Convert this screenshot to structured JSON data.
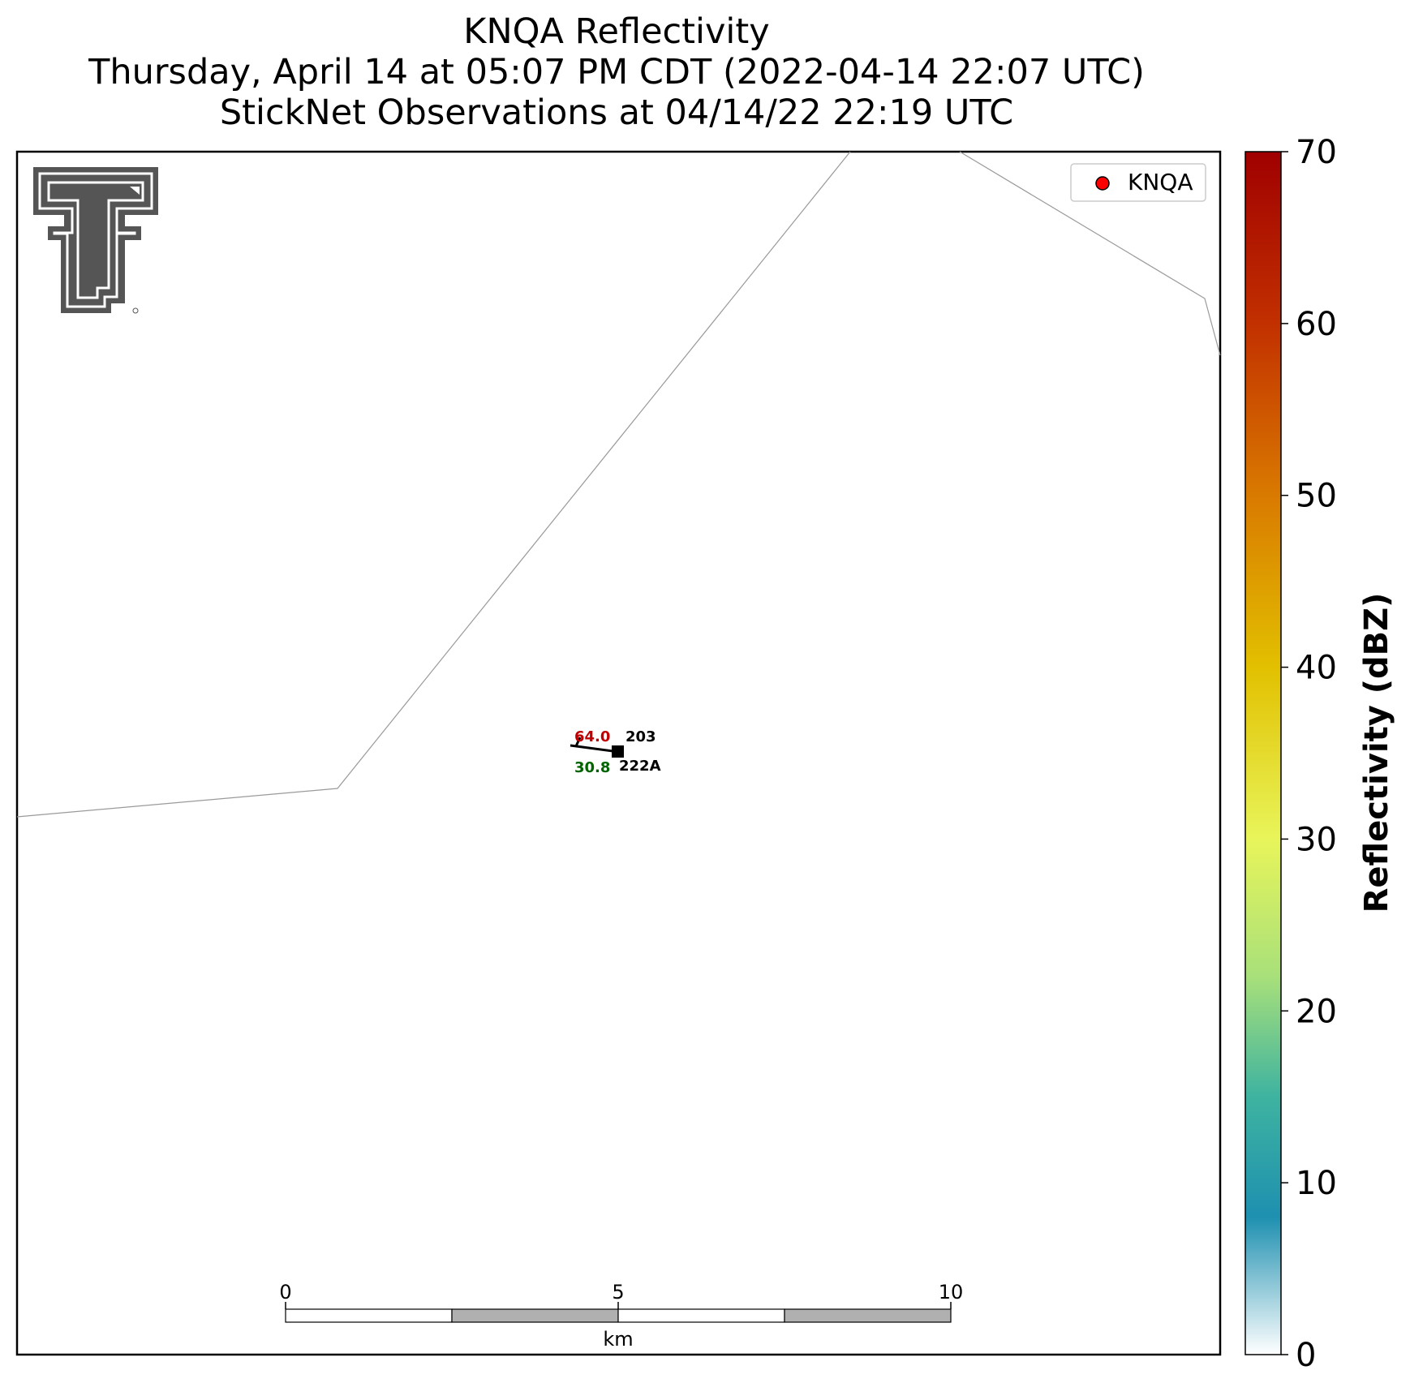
{
  "title": {
    "line1": "KNQA Reflectivity",
    "line2": "Thursday, April 14 at 05:07 PM CDT (2022-04-14 22:07 UTC)",
    "line3": "StickNet Observations at 04/14/22 22:19 UTC"
  },
  "legend": {
    "label": "KNQA",
    "marker_color": "#ff0000"
  },
  "station": {
    "temperature": "64.0",
    "pressure": "203",
    "dewpoint": "30.8",
    "id": "222A",
    "temperature_color": "#c00000",
    "dewpoint_color": "#006400"
  },
  "scalebar": {
    "ticks": [
      "0",
      "5",
      "10"
    ],
    "unit": "km"
  },
  "colorbar": {
    "label": "Reflectivity (dBZ)",
    "min": 0,
    "max": 70,
    "ticks": [
      "0",
      "10",
      "20",
      "30",
      "40",
      "50",
      "60",
      "70"
    ],
    "colors": {
      "0": "#ffffff",
      "8": "#1e90b0",
      "15": "#3eb3a0",
      "22": "#a8e07a",
      "30": "#e8f55a",
      "40": "#e2c000",
      "50": "#d97a00",
      "60": "#c23000",
      "70": "#a00000"
    }
  },
  "logo": {
    "name": "Texas Tech Double T",
    "color": "#555555"
  }
}
